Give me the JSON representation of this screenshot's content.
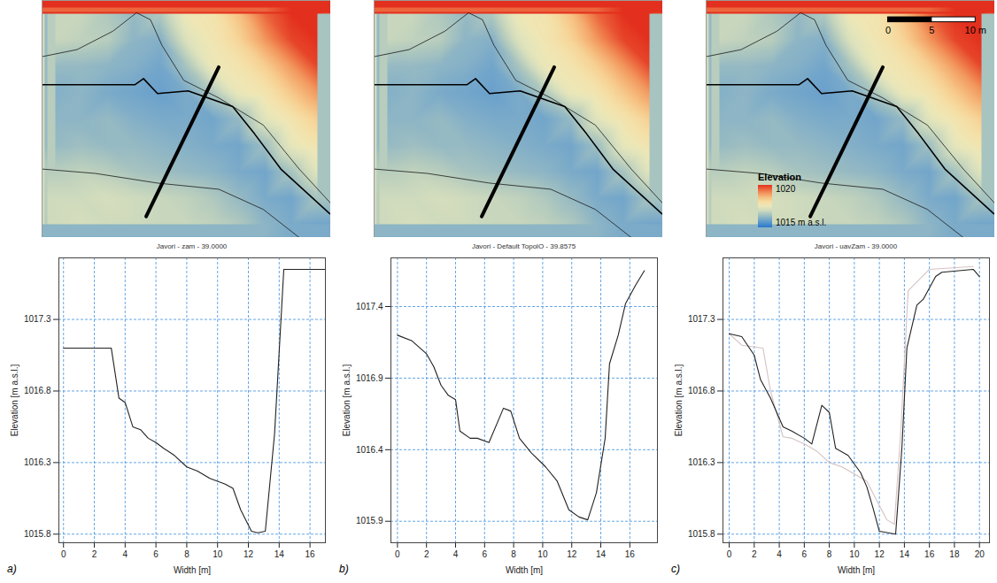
{
  "chart_data": [
    {
      "type": "heatmap",
      "xlim": [
        0,
        33
      ],
      "ylim": [
        0,
        27
      ],
      "tick_labels": false,
      "color_range": [
        1015,
        1020
      ],
      "elevation": {
        "x": [
          1.5,
          4.5,
          7.5,
          10.5,
          13.5,
          16.5,
          19.5,
          22.5,
          25.5,
          28.5,
          31.5
        ],
        "y": [
          25.5,
          22.5,
          19.5,
          16.5,
          13.5,
          10.5,
          7.5,
          4.5,
          1.5
        ],
        "values": [
          [
            1016.9,
            1016.9,
            1016.6,
            1016.3,
            1016.6,
            1017.6,
            1017.8,
            1018.5,
            1019.5,
            1020.0,
            1020.0
          ],
          [
            1016.9,
            1016.8,
            1016.7,
            1016.2,
            1016.1,
            1017.2,
            1017.7,
            1018.2,
            1019.0,
            1019.8,
            1020.0
          ],
          [
            1016.3,
            1016.3,
            1016.2,
            1016.1,
            1015.9,
            1016.5,
            1017.5,
            1017.8,
            1018.3,
            1019.0,
            1019.8
          ],
          [
            1016.1,
            1016.2,
            1016.0,
            1015.9,
            1015.8,
            1016.0,
            1016.6,
            1017.5,
            1017.8,
            1018.4,
            1019.0
          ],
          [
            1016.2,
            1016.2,
            1016.3,
            1016.1,
            1016.0,
            1016.0,
            1015.9,
            1016.3,
            1017.3,
            1017.8,
            1018.3
          ],
          [
            1016.3,
            1016.4,
            1016.3,
            1016.3,
            1016.2,
            1016.1,
            1016.0,
            1015.9,
            1016.4,
            1017.4,
            1017.8
          ],
          [
            1016.7,
            1016.8,
            1016.7,
            1016.5,
            1016.4,
            1016.3,
            1016.2,
            1016.0,
            1015.9,
            1016.5,
            1017.3
          ],
          [
            1017.0,
            1017.0,
            1017.1,
            1017.0,
            1016.9,
            1016.8,
            1016.6,
            1016.3,
            1016.0,
            1015.9,
            1016.5
          ],
          [
            1017.0,
            1017.1,
            1017.0,
            1017.0,
            1016.9,
            1016.9,
            1016.8,
            1016.6,
            1016.2,
            1016.0,
            1015.9
          ]
        ]
      },
      "thalweg": {
        "x": [
          0,
          10.6,
          11.6,
          13.2,
          16.7,
          21.8,
          24.3,
          27.3,
          32.9
        ],
        "y": [
          17.4,
          17.4,
          18.1,
          16.4,
          16.7,
          14.9,
          11.8,
          7.8,
          2.7
        ]
      },
      "bank_lines": [
        {
          "x": [
            0,
            4,
            8.1,
            10.8,
            12.4,
            13.7,
            16.2,
            20.2,
            25.3,
            29.4,
            33
          ],
          "y": [
            20.6,
            21.4,
            23.5,
            25.6,
            24.8,
            21.9,
            17.9,
            15.9,
            12.8,
            7.8,
            3.9
          ]
        },
        {
          "x": [
            0,
            6.1,
            13.2,
            20.2,
            25.3,
            29.4
          ],
          "y": [
            7.8,
            7.3,
            6.2,
            5.5,
            3.2,
            0
          ]
        }
      ],
      "cross_section": {
        "x": [
          11.9,
          20.2
        ],
        "y": [
          2.4,
          19.4
        ]
      }
    },
    {
      "type": "heatmap",
      "xlim": [
        0,
        33
      ],
      "ylim": [
        0,
        27
      ],
      "tick_labels": false,
      "color_range": [
        1015,
        1020
      ],
      "elevation": {
        "x": [
          3,
          9,
          15,
          21,
          27,
          33
        ],
        "y": [
          24,
          18,
          12,
          6,
          0
        ],
        "values": [
          [
            1016.4,
            1016.5,
            1016.8,
            1018.8,
            1019.7,
            1019.7
          ],
          [
            1016.8,
            1016.6,
            1016.5,
            1018.3,
            1017.4,
            1019.7
          ],
          [
            1016.9,
            1016.8,
            1016.9,
            1016.5,
            1017.4,
            1018.6
          ],
          [
            1017.0,
            1017.0,
            1016.9,
            1016.6,
            1016.4,
            1016.9
          ],
          [
            1017.0,
            1017.0,
            1017.0,
            1016.6,
            1016.5,
            1016.8
          ]
        ]
      },
      "channel_elevation": {
        "x": [
          1.5,
          4.5,
          7.5,
          10.5,
          13.5,
          16.5,
          19.5,
          22.5,
          25.5,
          28.5,
          31.5
        ],
        "y": [
          25.5,
          22.5,
          19.5,
          16.5,
          13.5,
          10.5,
          7.5,
          4.5,
          1.5
        ],
        "values": [
          [
            1016.9,
            1016.9,
            1016.6,
            1016.3,
            1016.6,
            1017.6,
            1017.8,
            1018.5,
            1019.5,
            1020.0,
            1020.0
          ],
          [
            1016.9,
            1016.8,
            1016.7,
            1016.2,
            1016.1,
            1017.2,
            1017.7,
            1018.2,
            1019.0,
            1019.8,
            1020.0
          ],
          [
            1016.3,
            1016.3,
            1016.2,
            1016.1,
            1015.9,
            1016.5,
            1017.5,
            1017.8,
            1018.3,
            1019.0,
            1019.8
          ],
          [
            1016.1,
            1016.2,
            1016.0,
            1015.9,
            1015.8,
            1016.0,
            1016.6,
            1017.5,
            1017.8,
            1018.4,
            1019.0
          ],
          [
            1016.2,
            1016.2,
            1016.3,
            1016.1,
            1016.0,
            1016.0,
            1015.9,
            1016.3,
            1017.3,
            1017.8,
            1018.3
          ],
          [
            1016.3,
            1016.4,
            1016.3,
            1016.3,
            1016.2,
            1016.1,
            1016.0,
            1015.9,
            1016.4,
            1017.4,
            1017.8
          ],
          [
            1016.7,
            1016.8,
            1016.7,
            1016.5,
            1016.4,
            1016.3,
            1016.2,
            1016.0,
            1015.9,
            1016.5,
            1017.3
          ],
          [
            1017.0,
            1017.0,
            1017.1,
            1017.0,
            1016.9,
            1016.8,
            1016.6,
            1016.3,
            1016.0,
            1015.9,
            1016.5
          ],
          [
            1017.0,
            1017.1,
            1017.0,
            1017.0,
            1016.9,
            1016.9,
            1016.8,
            1016.6,
            1016.2,
            1016.0,
            1015.9
          ]
        ]
      },
      "thalweg": {
        "x": [
          0,
          10.6,
          11.6,
          13.2,
          16.7,
          21.8,
          24.3,
          27.3,
          32.9
        ],
        "y": [
          17.4,
          17.4,
          18.1,
          16.4,
          16.7,
          14.9,
          11.8,
          7.8,
          2.7
        ]
      },
      "bank_lines": [
        {
          "x": [
            0,
            4,
            8.1,
            10.8,
            12.4,
            13.7,
            16.2,
            20.2,
            25.3,
            29.4,
            33
          ],
          "y": [
            20.6,
            21.4,
            23.5,
            25.6,
            24.8,
            21.9,
            17.9,
            15.9,
            12.8,
            7.8,
            3.9
          ]
        },
        {
          "x": [
            0,
            6.1,
            13.2,
            20.2,
            25.3,
            29.4
          ],
          "y": [
            7.8,
            7.3,
            6.2,
            5.5,
            3.2,
            0
          ]
        }
      ],
      "cross_section": {
        "x": [
          12.3,
          20.6
        ],
        "y": [
          2.4,
          19.4
        ]
      }
    },
    {
      "type": "heatmap",
      "xlim": [
        0,
        33
      ],
      "ylim": [
        0,
        27
      ],
      "tick_labels": false,
      "color_range": [
        1015,
        1020
      ],
      "elevation": {
        "x": [
          1.5,
          4.5,
          7.5,
          10.5,
          13.5,
          16.5,
          19.5,
          22.5,
          25.5,
          28.5,
          31.5
        ],
        "y": [
          25.5,
          22.5,
          19.5,
          16.5,
          13.5,
          10.5,
          7.5,
          4.5,
          1.5
        ],
        "values": [
          [
            1016.9,
            1016.9,
            1016.6,
            1016.3,
            1016.6,
            1017.6,
            1017.8,
            1018.5,
            1019.5,
            1020.0,
            1020.0
          ],
          [
            1016.9,
            1016.8,
            1016.7,
            1016.2,
            1016.1,
            1017.2,
            1017.7,
            1018.2,
            1019.0,
            1019.8,
            1020.0
          ],
          [
            1016.3,
            1016.3,
            1016.2,
            1016.1,
            1015.9,
            1016.5,
            1017.5,
            1017.8,
            1018.3,
            1019.0,
            1019.8
          ],
          [
            1016.1,
            1016.2,
            1016.0,
            1015.9,
            1015.8,
            1016.0,
            1016.6,
            1017.5,
            1017.8,
            1018.4,
            1019.0
          ],
          [
            1016.2,
            1016.2,
            1016.3,
            1016.1,
            1016.0,
            1016.0,
            1015.9,
            1016.3,
            1017.3,
            1017.8,
            1018.3
          ],
          [
            1016.3,
            1016.4,
            1016.3,
            1016.3,
            1016.2,
            1016.1,
            1016.0,
            1015.9,
            1016.4,
            1017.4,
            1017.8
          ],
          [
            1016.7,
            1016.8,
            1016.7,
            1016.5,
            1016.4,
            1016.3,
            1016.2,
            1016.0,
            1015.9,
            1016.5,
            1017.3
          ],
          [
            1017.0,
            1017.0,
            1017.1,
            1017.0,
            1016.9,
            1016.8,
            1016.6,
            1016.3,
            1016.0,
            1015.9,
            1016.5
          ],
          [
            1017.0,
            1017.1,
            1017.0,
            1017.0,
            1016.9,
            1016.9,
            1016.8,
            1016.6,
            1016.2,
            1016.0,
            1015.9
          ]
        ]
      },
      "thalweg": {
        "x": [
          0,
          10.6,
          11.6,
          13.2,
          16.7,
          21.8,
          24.3,
          27.3,
          32.9
        ],
        "y": [
          17.4,
          17.4,
          18.1,
          16.4,
          16.7,
          14.9,
          11.8,
          7.8,
          2.7
        ]
      },
      "bank_lines": [
        {
          "x": [
            0,
            4,
            8.1,
            10.8,
            12.4,
            13.7,
            16.2,
            20.2,
            25.3,
            29.4,
            33
          ],
          "y": [
            20.6,
            21.4,
            23.5,
            25.6,
            24.8,
            21.9,
            17.9,
            15.9,
            12.8,
            7.8,
            3.9
          ]
        },
        {
          "x": [
            0,
            6.1,
            13.2,
            20.2,
            25.3,
            29.4
          ],
          "y": [
            7.8,
            7.3,
            6.2,
            5.5,
            3.2,
            0
          ]
        }
      ],
      "cross_section": {
        "x": [
          11.9,
          20.2
        ],
        "y": [
          2.4,
          19.4
        ]
      },
      "colorbar": {
        "title": "Elevation",
        "range": [
          1015,
          1020
        ],
        "ticks": [
          {
            "value": 1020,
            "label": "1020"
          },
          {
            "value": 1015,
            "label": "1015 m a.s.l."
          }
        ]
      },
      "scale_bar": {
        "ticks": [
          0,
          5,
          {
            "value": 10,
            "label": "10 m"
          }
        ]
      }
    },
    {
      "type": "line",
      "title": "Javori - zam - 39.0000",
      "panel_label": "a)",
      "x_label": "Width [m]",
      "y_label": "Elevation [m a.s.l.]",
      "grid": true,
      "xlim": [
        -0.3,
        17
      ],
      "xticks": [
        0,
        2,
        4,
        6,
        8,
        10,
        12,
        14,
        16
      ],
      "ylim": [
        1015.74,
        1017.73
      ],
      "yticks": [
        1015.8,
        1016.3,
        1016.8,
        1017.3
      ],
      "series": [
        {
          "color": "#222222",
          "x": [
            0,
            1,
            2,
            3.1,
            3.6,
            4,
            4.5,
            5,
            5.5,
            6,
            6.5,
            7.2,
            8,
            8.7,
            9.5,
            10.5,
            11,
            11.5,
            12.2,
            12.6,
            13.1,
            13.7,
            14.3,
            15,
            16,
            17
          ],
          "values": [
            1017.1,
            1017.1,
            1017.1,
            1017.1,
            1016.75,
            1016.72,
            1016.55,
            1016.53,
            1016.47,
            1016.44,
            1016.4,
            1016.35,
            1016.27,
            1016.24,
            1016.19,
            1016.15,
            1016.12,
            1015.97,
            1015.82,
            1015.81,
            1015.82,
            1016.5,
            1017.65,
            1017.65,
            1017.65,
            1017.65
          ]
        }
      ]
    },
    {
      "type": "line",
      "title": "Javori - Default TopolO - 39.8575",
      "panel_label": "b)",
      "x_label": "Width [m]",
      "y_label": "Elevation [m a.s.l.]",
      "grid": true,
      "xlim": [
        -0.45,
        17.9
      ],
      "xticks": [
        0,
        2,
        4,
        6,
        8,
        10,
        12,
        14,
        16
      ],
      "ylim": [
        1015.75,
        1017.74
      ],
      "yticks": [
        1015.9,
        1016.4,
        1016.9,
        1017.4
      ],
      "series": [
        {
          "color": "#222222",
          "x": [
            0,
            1,
            2,
            2.5,
            3,
            3.5,
            4,
            4.3,
            5,
            5.5,
            6.3,
            7.3,
            7.8,
            8.4,
            9.2,
            10.2,
            11,
            11.8,
            12.5,
            13.1,
            13.7,
            14.3,
            14.6,
            15.2,
            15.7,
            16.4,
            17
          ],
          "values": [
            1017.2,
            1017.16,
            1017.07,
            1016.98,
            1016.85,
            1016.78,
            1016.75,
            1016.53,
            1016.48,
            1016.48,
            1016.45,
            1016.69,
            1016.67,
            1016.48,
            1016.38,
            1016.28,
            1016.18,
            1015.98,
            1015.93,
            1015.91,
            1016.1,
            1016.48,
            1017.0,
            1017.2,
            1017.42,
            1017.55,
            1017.65
          ]
        }
      ]
    },
    {
      "type": "line",
      "title": "Javori - uavZam - 39.0000",
      "panel_label": "c)",
      "x_label": "Width [m]",
      "y_label": "Elevation [m a.s.l.]",
      "grid": true,
      "xlim": [
        -0.5,
        20.8
      ],
      "xticks": [
        0,
        2,
        4,
        6,
        8,
        10,
        12,
        14,
        16,
        18,
        20
      ],
      "ylim": [
        1015.74,
        1017.73
      ],
      "yticks": [
        1015.8,
        1016.3,
        1016.8,
        1017.3
      ],
      "series": [
        {
          "color": "#d6c2c2",
          "x": [
            0,
            1,
            2.7,
            3.3,
            4.3,
            5,
            6,
            7,
            8,
            9,
            10,
            11,
            12,
            12.6,
            13.2,
            13.7,
            14.3,
            16,
            19.5
          ],
          "values": [
            1017.2,
            1017.12,
            1017.1,
            1016.8,
            1016.48,
            1016.47,
            1016.43,
            1016.38,
            1016.3,
            1016.27,
            1016.22,
            1016.17,
            1016.0,
            1015.9,
            1015.87,
            1016.5,
            1017.5,
            1017.65,
            1017.67
          ]
        },
        {
          "color": "#222222",
          "x": [
            0,
            1,
            2,
            2.5,
            3.3,
            4.3,
            5,
            6,
            6.6,
            7.4,
            8,
            8.5,
            9.5,
            10.5,
            11,
            11.5,
            12,
            13.3,
            13.8,
            14.2,
            15,
            15.5,
            16.5,
            17,
            19.5,
            20
          ],
          "values": [
            1017.2,
            1017.18,
            1017.05,
            1016.88,
            1016.75,
            1016.55,
            1016.52,
            1016.47,
            1016.43,
            1016.7,
            1016.65,
            1016.4,
            1016.35,
            1016.23,
            1016.13,
            1015.98,
            1015.82,
            1015.8,
            1016.4,
            1017.1,
            1017.4,
            1017.44,
            1017.6,
            1017.63,
            1017.65,
            1017.6
          ]
        }
      ]
    }
  ]
}
